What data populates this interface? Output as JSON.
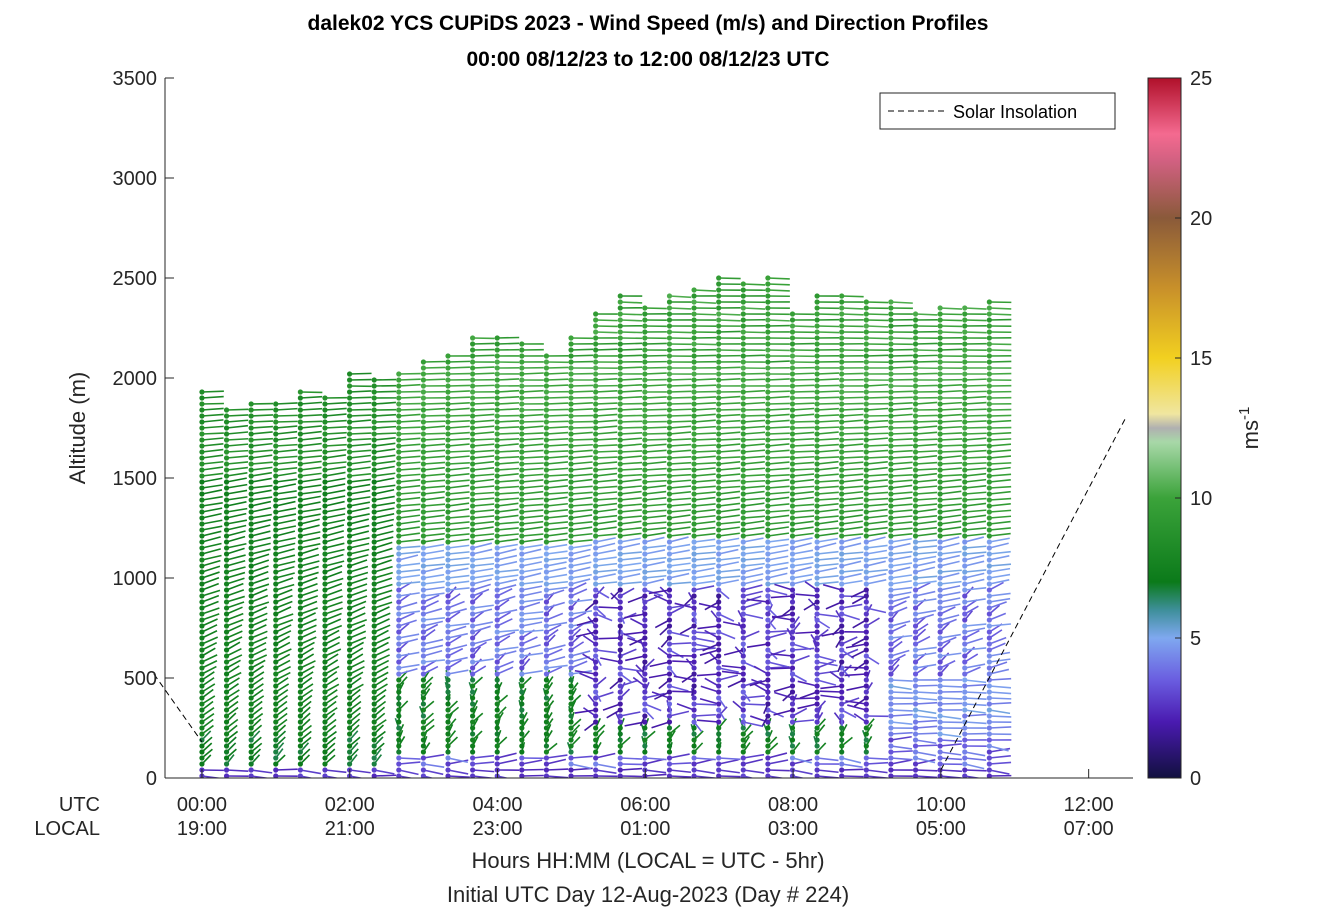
{
  "chart_data": {
    "type": "wind-barb-profile",
    "title": "dalek02 YCS CUPiDS 2023 - Wind Speed (m/s) and Direction Profiles",
    "subtitle": "00:00 08/12/23 to 12:00 08/12/23  UTC",
    "ylabel": "Altitude (m)",
    "xlabel": "Hours HH:MM  (LOCAL = UTC - 5hr)",
    "xlabel2": "Initial UTC Day 12-Aug-2023 (Day # 224)",
    "x_row_label_utc": "UTC",
    "x_row_label_local": "LOCAL",
    "xlim_hours": [
      -0.5,
      12.6
    ],
    "ylim": [
      0,
      3500
    ],
    "yticks": [
      "0",
      "500",
      "1000",
      "1500",
      "2000",
      "2500",
      "3000",
      "3500"
    ],
    "xticks_utc": [
      "00:00",
      "02:00",
      "04:00",
      "06:00",
      "08:00",
      "10:00",
      "12:00"
    ],
    "xticks_local": [
      "19:00",
      "21:00",
      "23:00",
      "01:00",
      "03:00",
      "05:00",
      "07:00"
    ],
    "legend": {
      "label": "Solar Insolation",
      "location": "top-right",
      "style": "dashed"
    },
    "colorbar": {
      "label": "ms",
      "label_sup": "-1",
      "range": [
        0,
        25
      ],
      "ticks": [
        "0",
        "5",
        "10",
        "15",
        "20",
        "25"
      ]
    },
    "solar_insolation": {
      "pre_dawn_segment": {
        "x_hours": [
          -0.65,
          0.0
        ],
        "y": [
          520,
          180
        ]
      },
      "post_dawn_segment": {
        "x_hours": [
          10.0,
          12.5
        ],
        "y": [
          40,
          1800
        ]
      }
    },
    "profiles": {
      "start_hour": 0.0,
      "interval_hours": 0.333,
      "count": 33,
      "top_altitudes_m": [
        1930,
        1850,
        1880,
        1890,
        1940,
        1900,
        2030,
        1990,
        2030,
        2090,
        2130,
        2200,
        2220,
        2180,
        2130,
        2200,
        2330,
        2410,
        2370,
        2420,
        2460,
        2500,
        2470,
        2500,
        2330,
        2410,
        2420,
        2400,
        2400,
        2330,
        2370,
        2370,
        2400
      ],
      "low_level_top_altitudes_m": [
        1930,
        1850,
        1880,
        1890,
        1940,
        1900,
        2030,
        1990,
        2030,
        2090,
        2130,
        2200,
        2220,
        2180,
        2130,
        2200,
        2330,
        2410,
        2370,
        2420,
        2460,
        2500,
        2470,
        2500,
        2330,
        2410,
        2420,
        2400,
        2400,
        2330,
        2370,
        2370,
        2400
      ],
      "level_spacing_m": 30,
      "colormap_stops": [
        "#12103f",
        "#4a1ab0",
        "#6a5de0",
        "#7fa8f0",
        "#3e8f9a",
        "#0b7a1a",
        "#3ba33a",
        "#8ccc8c",
        "#c0c0c0",
        "#f2d230",
        "#c28a2a",
        "#8a5a3a",
        "#f46a90",
        "#b0102a"
      ],
      "colormap_positions": [
        0,
        2,
        3.5,
        5,
        6,
        7,
        10,
        12,
        12.5,
        15,
        18,
        20,
        22.5,
        25
      ]
    }
  }
}
